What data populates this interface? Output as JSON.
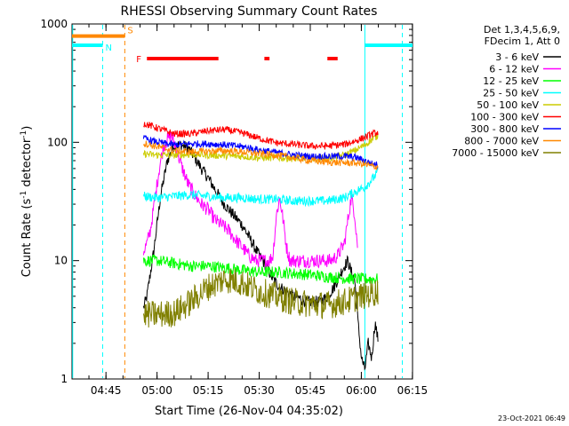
{
  "chart_data": {
    "type": "line",
    "title": "RHESSI Observing Summary Count Rates",
    "xlabel": "Start Time (26-Nov-04 04:35:02)",
    "ylabel": "Count Rate (s⁻¹ detector⁻¹)",
    "ylabel_parts": {
      "main": "Count Rate (s",
      "sup1": "-1",
      "mid": " detector",
      "sup2": "-1",
      "end": ")"
    },
    "yscale": "log",
    "ylim": [
      1,
      1000
    ],
    "xlim_minutes_after_start": [
      0,
      100
    ],
    "y_ticks": [
      {
        "value": 1,
        "label": "1"
      },
      {
        "value": 10,
        "label": "10"
      },
      {
        "value": 100,
        "label": "100"
      },
      {
        "value": 1000,
        "label": "1000"
      }
    ],
    "x_ticks": [
      {
        "minutes_after_start": 9.97,
        "label": "04:45"
      },
      {
        "minutes_after_start": 24.97,
        "label": "05:00"
      },
      {
        "minutes_after_start": 39.97,
        "label": "05:15"
      },
      {
        "minutes_after_start": 54.97,
        "label": "05:30"
      },
      {
        "minutes_after_start": 69.97,
        "label": "05:45"
      },
      {
        "minutes_after_start": 84.97,
        "label": "06:00"
      },
      {
        "minutes_after_start": 99.97,
        "label": "06:15"
      }
    ],
    "legend": {
      "header1": "Det 1,3,4,5,6,9,",
      "header2": "FDecim 1, Att 0",
      "placement": "right"
    },
    "series": [
      {
        "name": "3 - 6 keV",
        "color": "#000000",
        "x": [
          21,
          22,
          24,
          26,
          28,
          30,
          32,
          34,
          36,
          38,
          40,
          42,
          44,
          47,
          50,
          53,
          55,
          57,
          59,
          61,
          63,
          65,
          67,
          69,
          71,
          73,
          75,
          77,
          79,
          80,
          81,
          82,
          83,
          84,
          85,
          86,
          87,
          88,
          89,
          90
        ],
        "y": [
          4,
          5,
          12,
          35,
          70,
          95,
          95,
          90,
          75,
          60,
          50,
          40,
          32,
          25,
          20,
          14,
          11,
          9,
          7,
          6,
          5.5,
          5,
          4.8,
          4.5,
          4.5,
          4.5,
          5,
          6,
          8,
          9,
          10,
          8,
          7,
          3,
          1.5,
          1.2,
          2,
          1.5,
          3,
          2
        ]
      },
      {
        "name": "6 - 12 keV",
        "color": "#ff00ff",
        "x": [
          21,
          22,
          23,
          24,
          25,
          26,
          27,
          28,
          29,
          30,
          32,
          34,
          36,
          38,
          40,
          42,
          44,
          46,
          48,
          50,
          52,
          54,
          56,
          58,
          59,
          60,
          61,
          62,
          63,
          64,
          66,
          68,
          70,
          72,
          74,
          76,
          78,
          80,
          81,
          82,
          83,
          84
        ],
        "y": [
          12,
          14,
          18,
          28,
          45,
          70,
          95,
          105,
          115,
          100,
          65,
          45,
          36,
          30,
          27,
          22,
          20,
          18,
          15,
          13,
          11,
          10,
          10,
          10,
          11,
          24,
          34,
          22,
          13,
          10,
          10,
          10,
          10,
          10,
          10,
          10,
          11,
          14,
          22,
          34,
          25,
          12
        ]
      },
      {
        "name": "12 - 25 keV",
        "color": "#00ff00",
        "x": [
          21,
          25,
          30,
          35,
          40,
          45,
          50,
          55,
          60,
          65,
          70,
          75,
          80,
          85,
          90
        ],
        "y": [
          10,
          10,
          9.5,
          9,
          9,
          8.7,
          8.3,
          8,
          8,
          7.8,
          7.6,
          7.3,
          7.1,
          7,
          7
        ]
      },
      {
        "name": "25 - 50 keV",
        "color": "#00ffff",
        "x": [
          21,
          25,
          30,
          35,
          40,
          45,
          50,
          55,
          60,
          65,
          70,
          75,
          80,
          83,
          86,
          88,
          90
        ],
        "y": [
          35,
          34,
          35,
          36,
          35,
          34,
          34,
          33,
          33,
          32,
          32,
          32,
          34,
          38,
          42,
          48,
          57
        ]
      },
      {
        "name": "50 - 100 keV",
        "color": "#cccc00",
        "x": [
          21,
          25,
          30,
          35,
          40,
          45,
          50,
          55,
          60,
          65,
          70,
          75,
          80,
          83,
          86,
          88,
          90
        ],
        "y": [
          80,
          78,
          78,
          79,
          78,
          77,
          76,
          74,
          74,
          73,
          73,
          73,
          78,
          85,
          95,
          105,
          115
        ]
      },
      {
        "name": "100 - 300 keV",
        "color": "#ff0000",
        "x": [
          21,
          25,
          30,
          35,
          40,
          45,
          50,
          55,
          60,
          65,
          70,
          75,
          80,
          83,
          86,
          88,
          90
        ],
        "y": [
          145,
          132,
          118,
          118,
          125,
          128,
          120,
          108,
          99,
          96,
          93,
          93,
          96,
          102,
          110,
          117,
          122
        ]
      },
      {
        "name": "300 - 800 keV",
        "color": "#0000ff",
        "x": [
          21,
          25,
          30,
          35,
          40,
          45,
          50,
          55,
          60,
          65,
          70,
          75,
          80,
          83,
          86,
          88,
          90
        ],
        "y": [
          108,
          100,
          95,
          97,
          97,
          95,
          92,
          86,
          82,
          78,
          76,
          76,
          76,
          75,
          70,
          66,
          64
        ]
      },
      {
        "name": "800 - 7000 keV",
        "color": "#ff8800",
        "x": [
          21,
          25,
          30,
          35,
          40,
          45,
          50,
          55,
          60,
          65,
          70,
          75,
          80,
          83,
          86,
          88,
          90
        ],
        "y": [
          98,
          92,
          85,
          83,
          84,
          85,
          83,
          80,
          78,
          74,
          70,
          68,
          67,
          67,
          65,
          63,
          62
        ]
      },
      {
        "name": "7000 - 15000 keV",
        "color": "#808000",
        "x": [
          21,
          25,
          30,
          35,
          40,
          45,
          50,
          55,
          60,
          65,
          70,
          75,
          80,
          85,
          90
        ],
        "y": [
          3.5,
          3.5,
          3.6,
          4.5,
          6,
          7,
          6.5,
          5.5,
          5,
          4.5,
          4.3,
          4.2,
          4.5,
          5,
          5.5
        ]
      }
    ],
    "flags": [
      {
        "label": "N",
        "color": "#00ffff",
        "segments": [
          [
            0,
            9
          ],
          [
            86,
            100
          ]
        ],
        "y": 660
      },
      {
        "label": "S",
        "color": "#ff8800",
        "segments": [
          [
            0,
            15.5
          ]
        ],
        "y": 790
      },
      {
        "label": "F",
        "color": "#ff0000",
        "segments": [
          [
            22,
            43
          ],
          [
            56.5,
            58
          ],
          [
            75,
            78
          ]
        ],
        "y": 510
      }
    ],
    "markers": [
      {
        "type": "vline",
        "x": 0.2,
        "color": "#00ffff",
        "dashed": false
      },
      {
        "type": "vline",
        "x": 9,
        "color": "#00ffff",
        "dashed": true
      },
      {
        "type": "vline",
        "x": 15.5,
        "color": "#ff8800",
        "dashed": true
      },
      {
        "type": "vline",
        "x": 86,
        "color": "#00ffff",
        "dashed": false
      },
      {
        "type": "vline",
        "x": 97,
        "color": "#00ffff",
        "dashed": true
      }
    ],
    "timestamp": "23-Oct-2021 06:49",
    "grid": false
  }
}
